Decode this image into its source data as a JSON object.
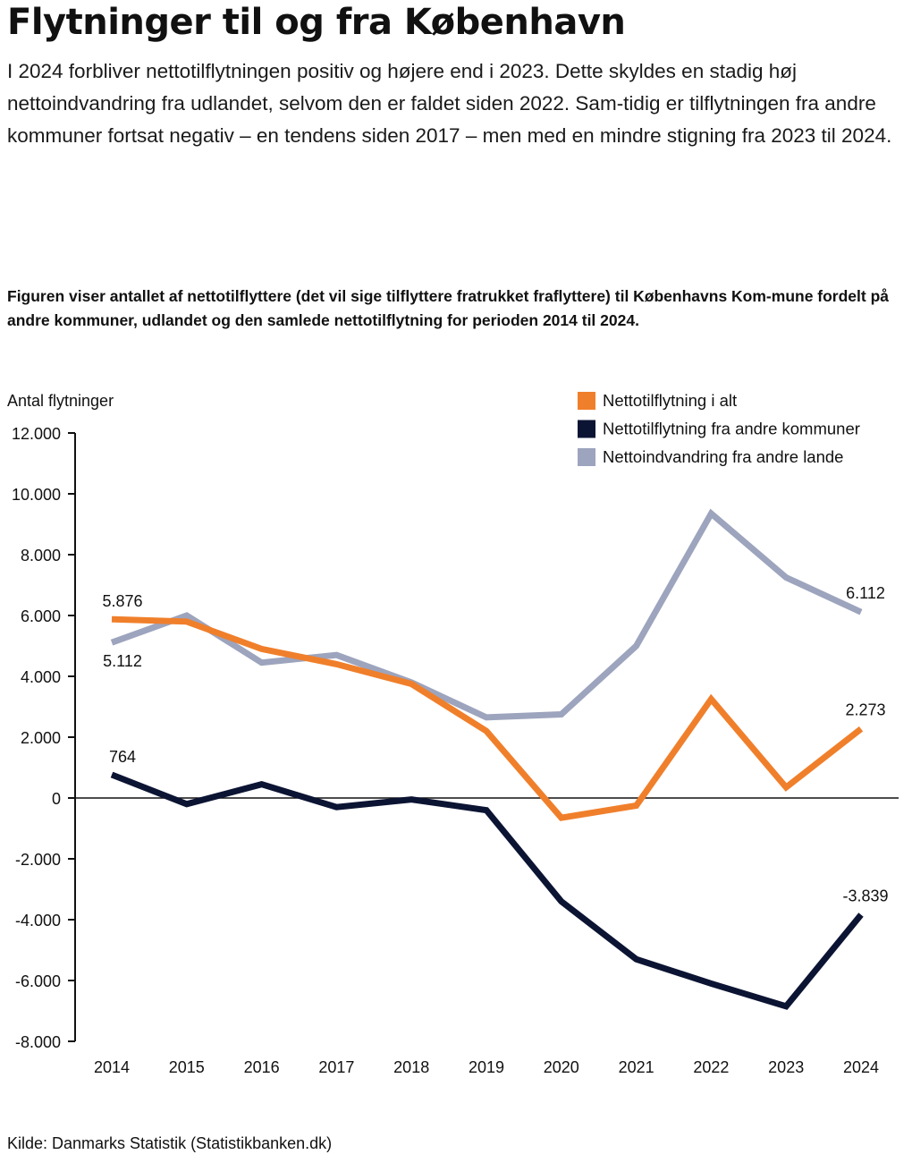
{
  "page": {
    "title": "Flytninger til og fra København",
    "intro": "I 2024 forbliver nettotilflytningen positiv og højere end i 2023. Dette skyldes en stadig høj nettoindvandring fra udlandet, selvom den er faldet siden 2022. Sam-tidig er tilflytningen fra andre kommuner fortsat negativ – en tendens siden 2017 – men med en mindre stigning fra 2023 til 2024.",
    "caption": "Figuren viser antallet af nettotilflyttere (det vil sige tilflyttere fratrukket fraflyttere) til Københavns Kom-mune fordelt på andre kommuner, udlandet og den samlede nettotilflytning for perioden 2014 til 2024.",
    "source": "Kilde: Danmarks Statistik (Statistikbanken.dk)"
  },
  "chart_data": {
    "type": "line",
    "ylabel": "Antal flytninger",
    "ylim": [
      -8000,
      12000
    ],
    "yticks": [
      12000,
      10000,
      8000,
      6000,
      4000,
      2000,
      0,
      -2000,
      -4000,
      -6000,
      -8000
    ],
    "ytick_labels": [
      "12.000",
      "10.000",
      "8.000",
      "6.000",
      "4.000",
      "2.000",
      "0",
      "-2.000",
      "-4.000",
      "-6.000",
      "-8.000"
    ],
    "categories": [
      "2014",
      "2015",
      "2016",
      "2017",
      "2018",
      "2019",
      "2020",
      "2021",
      "2022",
      "2023",
      "2024"
    ],
    "legend_position": "top-right",
    "series": [
      {
        "name": "Nettoindvandring fra andre lande",
        "color": "#9da4bd",
        "values": [
          5112,
          6000,
          4450,
          4700,
          3800,
          2650,
          2750,
          5000,
          9350,
          7250,
          6112
        ]
      },
      {
        "name": "Nettotilflytning i alt",
        "color": "#f07f2b",
        "values": [
          5876,
          5800,
          4900,
          4400,
          3750,
          2200,
          -650,
          -250,
          3250,
          350,
          2273
        ]
      },
      {
        "name": "Nettotilflytning fra andre kommuner",
        "color": "#0c1433",
        "values": [
          764,
          -200,
          450,
          -300,
          -50,
          -400,
          -3400,
          -5300,
          -6100,
          -6850,
          -3839
        ]
      }
    ],
    "legend_order": [
      "Nettotilflytning i alt",
      "Nettotilflytning fra andre kommuner",
      "Nettoindvandring fra andre lande"
    ],
    "annotations": [
      {
        "series": "Nettotilflytning i alt",
        "index": 0,
        "text": "5.876"
      },
      {
        "series": "Nettoindvandring fra andre lande",
        "index": 0,
        "text": "5.112"
      },
      {
        "series": "Nettotilflytning fra andre kommuner",
        "index": 0,
        "text": "764"
      },
      {
        "series": "Nettoindvandring fra andre lande",
        "index": 10,
        "text": "6.112"
      },
      {
        "series": "Nettotilflytning i alt",
        "index": 10,
        "text": "2.273"
      },
      {
        "series": "Nettotilflytning fra andre kommuner",
        "index": 10,
        "text": "-3.839"
      }
    ]
  }
}
